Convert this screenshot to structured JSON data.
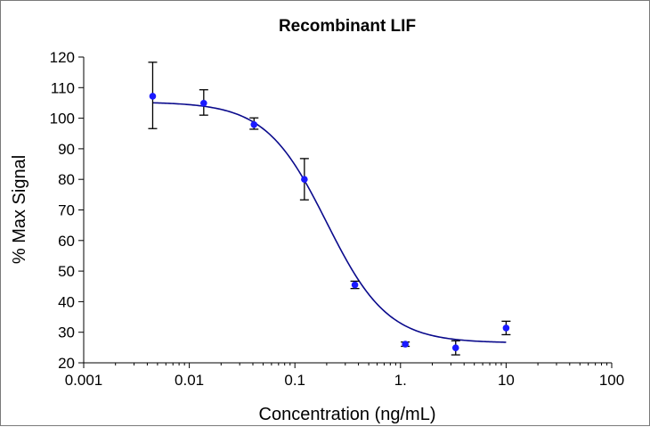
{
  "chart_data": {
    "type": "scatter",
    "title": "Recombinant LIF",
    "xlabel": "Concentration (ng/mL)",
    "ylabel": "% Max Signal",
    "xscale": "log",
    "xlim": [
      0.001,
      100
    ],
    "ylim": [
      20,
      120
    ],
    "x_ticks": [
      {
        "value": 0.001,
        "label": "0.001"
      },
      {
        "value": 0.01,
        "label": "0.01"
      },
      {
        "value": 0.1,
        "label": "0.1"
      },
      {
        "value": 1,
        "label": "1."
      },
      {
        "value": 10,
        "label": "10"
      },
      {
        "value": 100,
        "label": "100"
      }
    ],
    "y_ticks": [
      20,
      30,
      40,
      50,
      60,
      70,
      80,
      90,
      100,
      110,
      120
    ],
    "series": [
      {
        "name": "Recombinant LIF",
        "color": "#1a1aff",
        "points": [
          {
            "x": 0.0045,
            "y": 107.2,
            "err_low": 96.6,
            "err_high": 118.3
          },
          {
            "x": 0.0137,
            "y": 104.9,
            "err_low": 101.0,
            "err_high": 109.3
          },
          {
            "x": 0.041,
            "y": 97.9,
            "err_low": 96.4,
            "err_high": 100.1
          },
          {
            "x": 0.123,
            "y": 80.0,
            "err_low": 73.3,
            "err_high": 86.8
          },
          {
            "x": 0.37,
            "y": 45.5,
            "err_low": 44.3,
            "err_high": 46.7
          },
          {
            "x": 1.11,
            "y": 26.1,
            "err_low": 25.4,
            "err_high": 26.8
          },
          {
            "x": 3.33,
            "y": 24.9,
            "err_low": 22.6,
            "err_high": 27.2
          },
          {
            "x": 10,
            "y": 31.4,
            "err_low": 29.2,
            "err_high": 33.6
          }
        ]
      }
    ],
    "fit": {
      "type": "4PL",
      "color": "#0a0a8c",
      "top": 105.3,
      "bottom": 26.5,
      "ec50": 0.2,
      "hill": -1.5,
      "x_range": [
        0.0045,
        10
      ]
    },
    "grid": false,
    "legend": "none"
  }
}
